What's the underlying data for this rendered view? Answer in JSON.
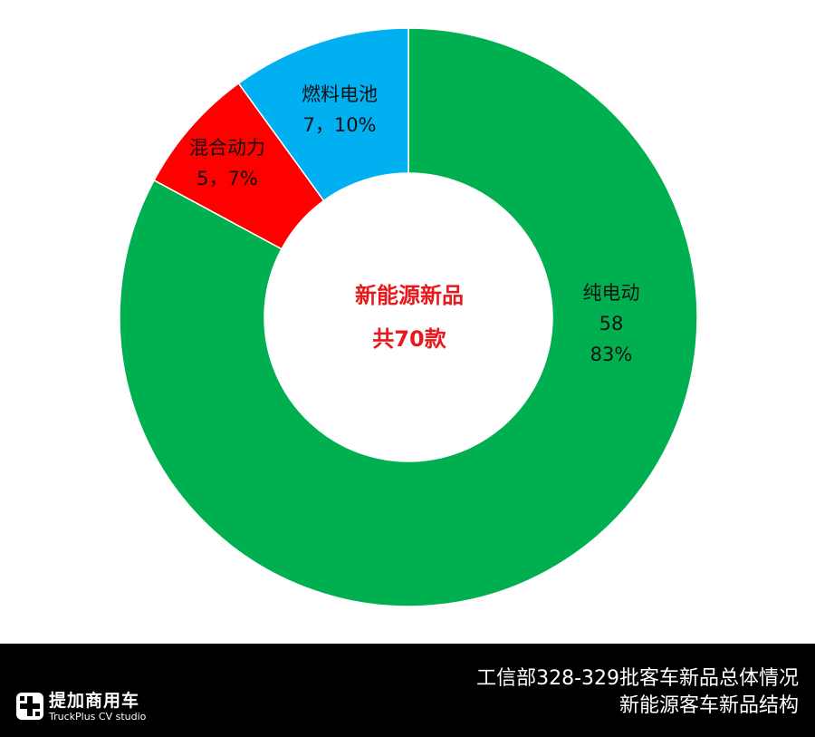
{
  "chart_data": {
    "type": "pie",
    "variant": "donut",
    "center_label": [
      "新能源新品",
      "共70款"
    ],
    "slices": [
      {
        "name": "纯电动",
        "value": 58,
        "percent_label": "83%",
        "color": "#00B050"
      },
      {
        "name": "混合动力",
        "value": 5,
        "percent_label": "7%",
        "color": "#FF0000"
      },
      {
        "name": "燃料电池",
        "value": 7,
        "percent_label": "10%",
        "color": "#00B0F0"
      }
    ],
    "label_texts": {
      "bev": [
        "纯电动",
        "58",
        "83%"
      ],
      "hev": [
        "混合动力",
        "5，7%"
      ],
      "fcv": [
        "燃料电池",
        "7，10%"
      ]
    },
    "center_text_color": "#E8191C"
  },
  "footer": {
    "brand_name": "提加商用车",
    "brand_sub": "TruckPlus CV studio",
    "caption_line1": "工信部328-329批客车新品总体情况",
    "caption_line2": "新能源客车新品结构"
  }
}
